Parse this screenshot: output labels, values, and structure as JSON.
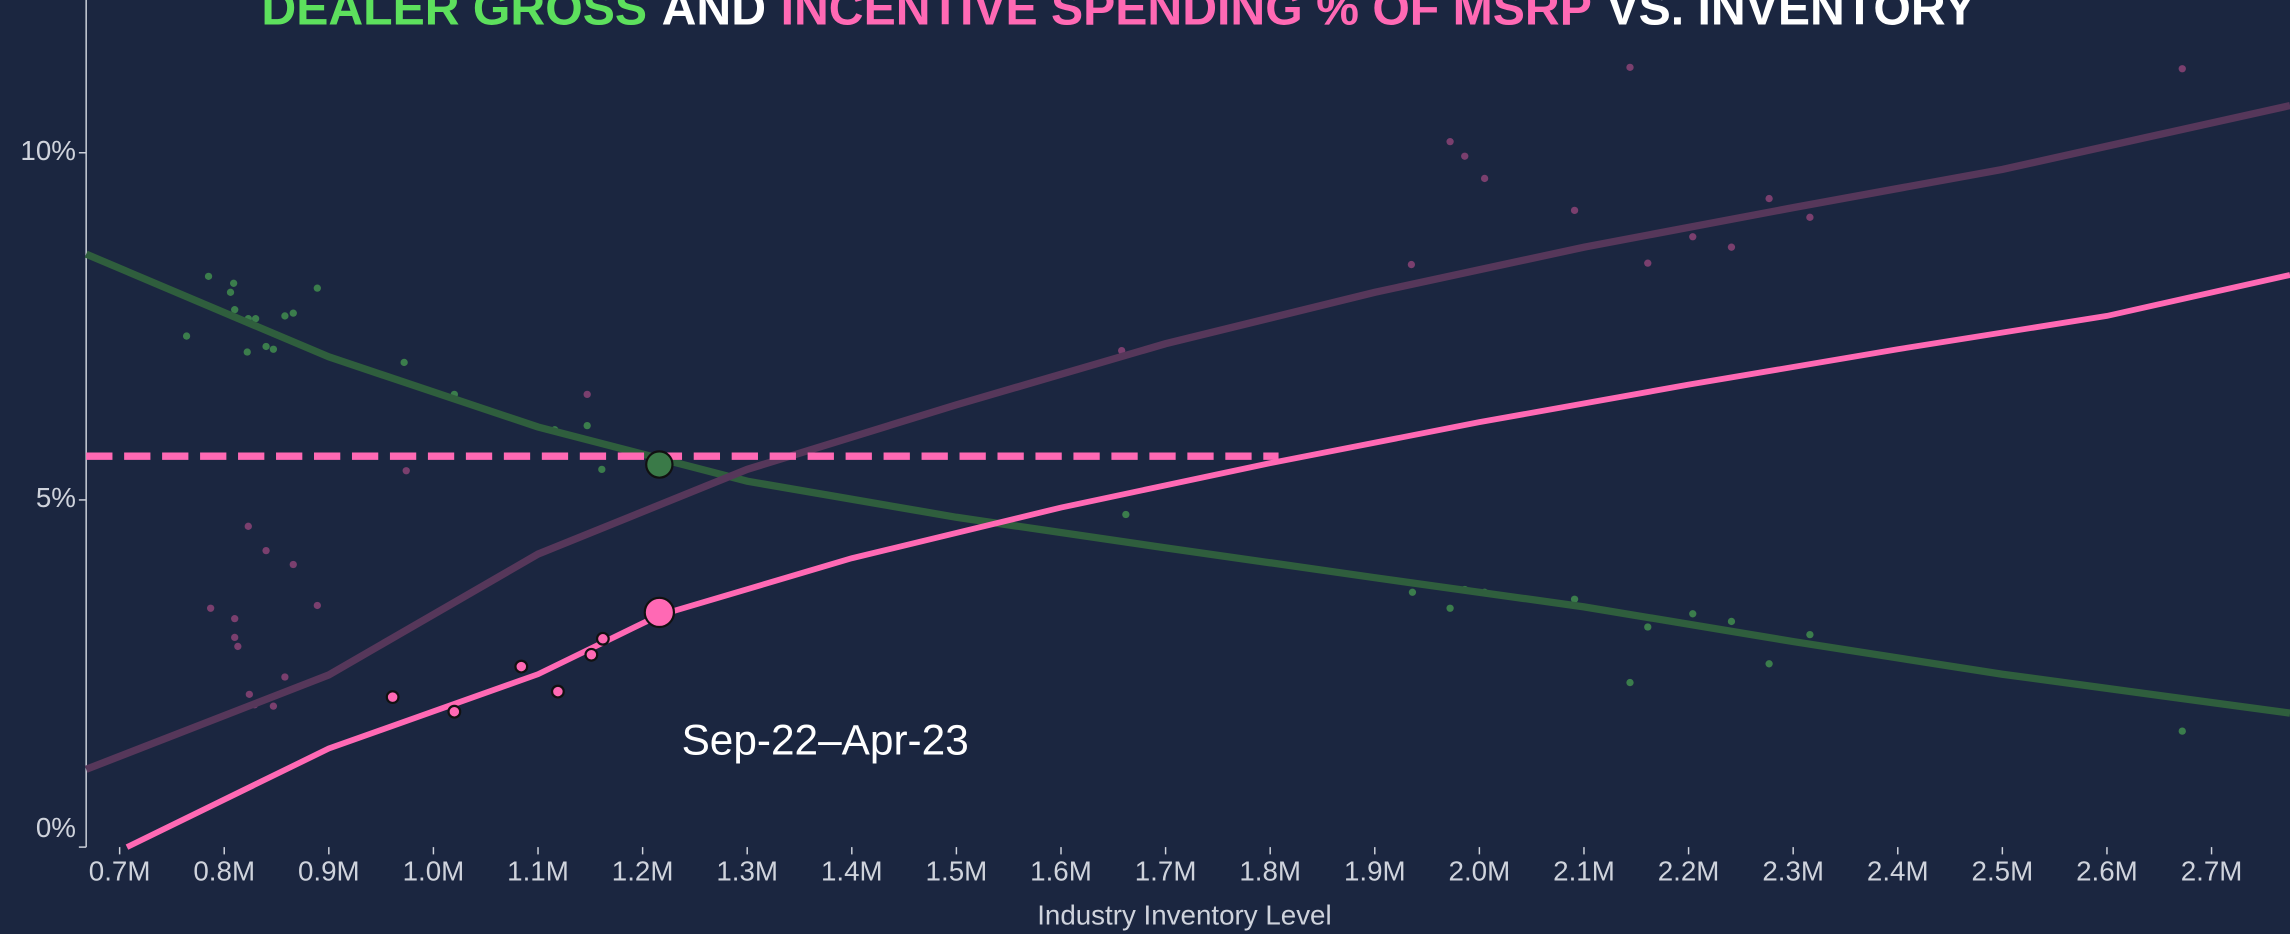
{
  "chart_data": {
    "type": "scatter",
    "title": [
      {
        "text": "DEALER GROSS",
        "color": "#5de05d"
      },
      {
        "text": "AND",
        "color": "#ffffff"
      },
      {
        "text": "INCENTIVE SPENDING % OF MSRP",
        "color": "#ff69b4"
      },
      {
        "text": "VS. INVENTORY",
        "color": "#ffffff"
      }
    ],
    "xlabel": "Industry Inventory Level",
    "annotation": "Sep-22–Apr-23",
    "xlim": [
      668000,
      2775000
    ],
    "ylim": [
      0,
      12.2
    ],
    "xticks": [
      {
        "value": 700000,
        "label": "0.7M"
      },
      {
        "value": 800000,
        "label": "0.8M"
      },
      {
        "value": 900000,
        "label": "0.9M"
      },
      {
        "value": 1000000,
        "label": "1.0M"
      },
      {
        "value": 1100000,
        "label": "1.1M"
      },
      {
        "value": 1200000,
        "label": "1.2M"
      },
      {
        "value": 1300000,
        "label": "1.3M"
      },
      {
        "value": 1400000,
        "label": "1.4M"
      },
      {
        "value": 1500000,
        "label": "1.5M"
      },
      {
        "value": 1600000,
        "label": "1.6M"
      },
      {
        "value": 1700000,
        "label": "1.7M"
      },
      {
        "value": 1800000,
        "label": "1.8M"
      },
      {
        "value": 1900000,
        "label": "1.9M"
      },
      {
        "value": 2000000,
        "label": "2.0M"
      },
      {
        "value": 2100000,
        "label": "2.1M"
      },
      {
        "value": 2200000,
        "label": "2.2M"
      },
      {
        "value": 2300000,
        "label": "2.3M"
      },
      {
        "value": 2400000,
        "label": "2.4M"
      },
      {
        "value": 2500000,
        "label": "2.5M"
      },
      {
        "value": 2600000,
        "label": "2.6M"
      },
      {
        "value": 2700000,
        "label": "2.7M"
      }
    ],
    "yticks": [
      {
        "value": 0,
        "label": "0%"
      },
      {
        "value": 5,
        "label": "5%"
      },
      {
        "value": 10,
        "label": "10%"
      }
    ],
    "series": [
      {
        "style": "points",
        "color": "#3b7d4c",
        "marker_size": 2.5,
        "x": [
          764000,
          785000,
          806000,
          809000,
          810000,
          823000,
          830000,
          822000,
          840000,
          847000,
          858000,
          866000,
          889000,
          972000,
          1020000,
          1116000,
          1147000,
          1161000,
          1662000,
          1936000,
          1972000,
          1986000,
          2005000,
          2091000,
          2144000,
          2161000,
          2204000,
          2241000,
          2277000,
          2316000,
          2672000
        ],
        "values": [
          7.36,
          8.22,
          7.99,
          8.12,
          7.74,
          7.61,
          7.61,
          7.13,
          7.21,
          7.17,
          7.65,
          7.69,
          8.05,
          6.98,
          6.52,
          6.01,
          6.07,
          5.44,
          4.79,
          3.67,
          3.44,
          3.71,
          3.67,
          3.57,
          2.37,
          3.17,
          3.36,
          3.25,
          2.64,
          3.06,
          1.67
        ]
      },
      {
        "style": "points",
        "color": "#7a3f6e",
        "marker_size": 2.5,
        "x": [
          787000,
          810000,
          810000,
          813000,
          823000,
          824000,
          829000,
          840000,
          847000,
          858000,
          866000,
          889000,
          974000,
          1147000,
          1658000,
          1935000,
          1972000,
          1986000,
          2005000,
          2091000,
          2144000,
          2161000,
          2204000,
          2241000,
          2277000,
          2316000,
          2672000
        ],
        "values": [
          3.44,
          3.29,
          3.02,
          2.89,
          4.62,
          2.2,
          2.05,
          4.27,
          2.03,
          2.45,
          4.07,
          3.48,
          5.42,
          6.52,
          7.15,
          8.39,
          10.16,
          9.95,
          9.63,
          9.17,
          11.23,
          8.41,
          8.79,
          8.64,
          9.34,
          9.07,
          11.21
        ]
      },
      {
        "style": "line",
        "color": "#2f5e3d",
        "width": 5,
        "x": [
          668000,
          900000,
          1100000,
          1300000,
          1500000,
          1700000,
          1900000,
          2100000,
          2300000,
          2500000,
          2775000
        ],
        "values": [
          8.54,
          7.06,
          6.05,
          5.27,
          4.75,
          4.31,
          3.88,
          3.46,
          2.96,
          2.49,
          1.93
        ]
      },
      {
        "style": "line",
        "color": "#56375a",
        "width": 5,
        "x": [
          668000,
          900000,
          1100000,
          1300000,
          1500000,
          1700000,
          1900000,
          2100000,
          2300000,
          2500000,
          2775000
        ],
        "values": [
          1.12,
          2.48,
          4.22,
          5.44,
          6.37,
          7.25,
          7.99,
          8.64,
          9.21,
          9.76,
          10.68
        ]
      },
      {
        "style": "line",
        "color": "#ff69b4",
        "width": 4,
        "x": [
          707000,
          900000,
          1100000,
          1216000,
          1400000,
          1600000,
          1800000,
          2000000,
          2200000,
          2400000,
          2600000,
          2775000
        ],
        "values": [
          0,
          1.42,
          2.49,
          3.34,
          4.16,
          4.89,
          5.53,
          6.12,
          6.66,
          7.17,
          7.65,
          8.24
        ]
      },
      {
        "style": "dashed",
        "color": "#ff69b4",
        "width": 5,
        "x": [
          668000,
          1808000
        ],
        "values": [
          5.63,
          5.63
        ]
      },
      {
        "style": "points",
        "color": "#ff69b4",
        "marker_size": 4,
        "x": [
          961000,
          1020000,
          1084000,
          1119000,
          1151000,
          1162000
        ],
        "values": [
          2.16,
          1.95,
          2.6,
          2.24,
          2.77,
          3.0
        ]
      },
      {
        "style": "points",
        "color": "#ff69b4",
        "marker_size": 10,
        "x": [
          1216000
        ],
        "values": [
          3.38
        ]
      },
      {
        "style": "points",
        "color": "#3a7a48",
        "marker_size": 9,
        "x": [
          1216000
        ],
        "values": [
          5.51
        ]
      }
    ]
  }
}
